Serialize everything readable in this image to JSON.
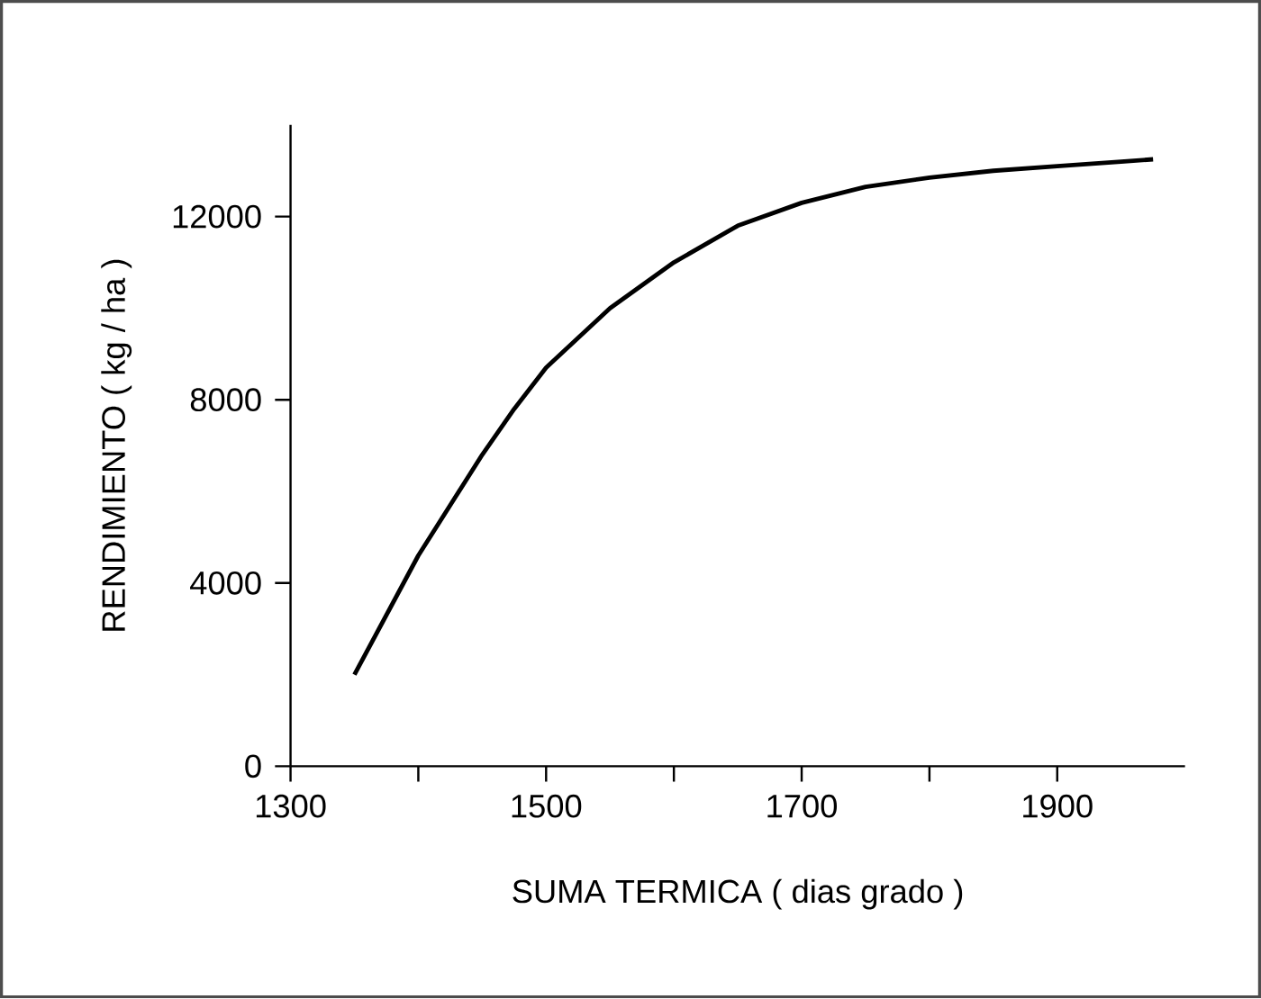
{
  "chart_data": {
    "type": "line",
    "xlabel": "SUMA TERMICA   ( dias grado )",
    "ylabel": "RENDIMIENTO    ( kg / ha )",
    "x": [
      1350,
      1375,
      1400,
      1425,
      1450,
      1475,
      1500,
      1550,
      1600,
      1650,
      1700,
      1750,
      1800,
      1850,
      1900,
      1950,
      1975
    ],
    "series": [
      {
        "color": "#000000",
        "values": [
          2000,
          3300,
          4600,
          5700,
          6800,
          7800,
          8700,
          10000,
          11000,
          11800,
          12300,
          12650,
          12850,
          13000,
          13100,
          13200,
          13250
        ]
      }
    ],
    "xlim": [
      1300,
      2000
    ],
    "ylim": [
      0,
      14000
    ],
    "xticks": [
      1300,
      {
        "value": 1400,
        "label": null
      },
      1500,
      {
        "value": 1600,
        "label": null
      },
      1700,
      {
        "value": 1800,
        "label": null
      },
      1900
    ],
    "yticks": [
      0,
      4000,
      8000,
      12000
    ],
    "grid": false,
    "marker": "none",
    "line_style": "solid"
  }
}
